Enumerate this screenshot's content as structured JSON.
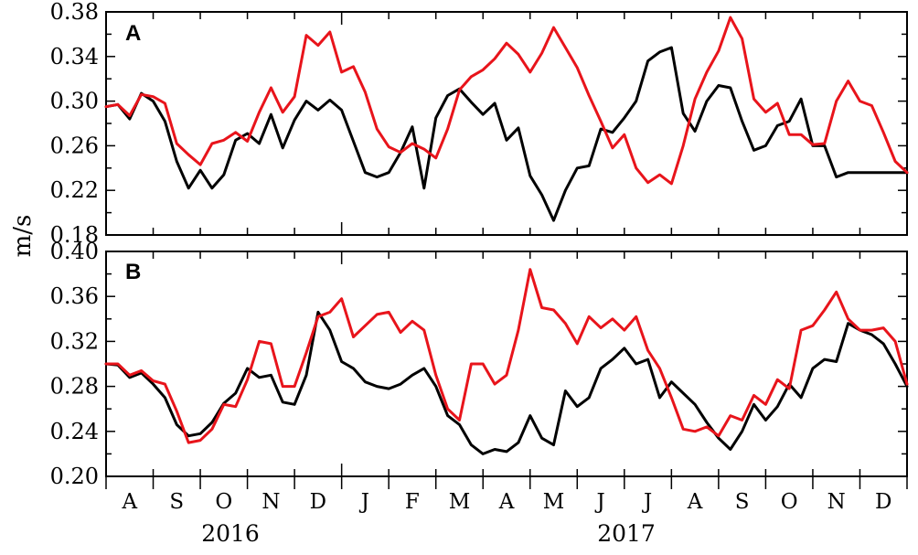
{
  "chart_data": {
    "type": "line",
    "ylabel": "m/s",
    "x_unit": "month",
    "x_range": [
      "2016-08-01",
      "2017-12-31"
    ],
    "months": [
      "A",
      "S",
      "O",
      "N",
      "D",
      "J",
      "F",
      "M",
      "A",
      "M",
      "J",
      "J",
      "A",
      "S",
      "O",
      "N",
      "D"
    ],
    "years": [
      "2016",
      "2017"
    ],
    "colors": {
      "black_series": "#000000",
      "red_series": "#e8141b"
    },
    "panels": [
      {
        "label": "A",
        "ylim": [
          0.18,
          0.38
        ],
        "yticks": [
          "0.18",
          "0.22",
          "0.26",
          "0.30",
          "0.34",
          "0.38"
        ],
        "series": [
          {
            "color": "#000000",
            "x": [
              0,
              0.25,
              0.5,
              0.75,
              1,
              1.25,
              1.5,
              1.75,
              2,
              2.25,
              2.5,
              2.75,
              3,
              3.25,
              3.5,
              3.75,
              4,
              4.25,
              4.5,
              4.75,
              5,
              5.25,
              5.5,
              5.75,
              6,
              6.25,
              6.5,
              6.75,
              7,
              7.25,
              7.5,
              7.75,
              8,
              8.25,
              8.5,
              8.75,
              9,
              9.25,
              9.5,
              9.75,
              10,
              10.25,
              10.5,
              10.75,
              11,
              11.25,
              11.5,
              11.75,
              12,
              12.25,
              12.5,
              12.75,
              13,
              13.25,
              13.5,
              13.75,
              14,
              14.25,
              14.5,
              14.75,
              15,
              15.25,
              15.5,
              15.75,
              16,
              16.25,
              16.5,
              16.75,
              17
            ],
            "y": [
              0.295,
              0.297,
              0.284,
              0.307,
              0.3,
              0.282,
              0.246,
              0.222,
              0.238,
              0.222,
              0.234,
              0.265,
              0.271,
              0.262,
              0.288,
              0.258,
              0.283,
              0.3,
              0.292,
              0.301,
              0.292,
              0.264,
              0.236,
              0.232,
              0.236,
              0.254,
              0.277,
              0.222,
              0.285,
              0.305,
              0.311,
              0.299,
              0.288,
              0.298,
              0.265,
              0.276,
              0.233,
              0.216,
              0.193,
              0.22,
              0.24,
              0.242,
              0.275,
              0.272,
              0.285,
              0.3,
              0.336,
              0.344,
              0.348,
              0.289,
              0.273,
              0.3,
              0.314,
              0.312,
              0.282,
              0.256,
              0.26,
              0.278,
              0.282,
              0.302,
              0.26,
              0.26,
              0.232,
              0.236,
              0.236,
              0.236,
              0.236,
              0.236,
              0.236
            ],
            "note_len": 61
          },
          {
            "color": "#e8141b",
            "x": [
              0,
              0.25,
              0.5,
              0.75,
              1,
              1.25,
              1.5,
              1.75,
              2,
              2.25,
              2.5,
              2.75,
              3,
              3.25,
              3.5,
              3.75,
              4,
              4.25,
              4.5,
              4.75,
              5,
              5.25,
              5.5,
              5.75,
              6,
              6.25,
              6.5,
              6.75,
              7,
              7.25,
              7.5,
              7.75,
              8,
              8.25,
              8.5,
              8.75,
              9,
              9.25,
              9.5,
              9.75,
              10,
              10.25,
              10.5,
              10.75,
              11,
              11.25,
              11.5,
              11.75,
              12,
              12.25,
              12.5,
              12.75,
              13,
              13.25,
              13.5,
              13.75,
              14,
              14.25,
              14.5,
              14.75,
              15,
              15.25,
              15.5,
              15.75,
              16,
              16.25,
              16.5,
              16.75,
              17
            ],
            "y": [
              0.295,
              0.297,
              0.287,
              0.306,
              0.304,
              0.298,
              0.262,
              0.252,
              0.243,
              0.262,
              0.265,
              0.272,
              0.264,
              0.29,
              0.312,
              0.29,
              0.304,
              0.359,
              0.35,
              0.362,
              0.326,
              0.331,
              0.308,
              0.275,
              0.259,
              0.254,
              0.262,
              0.257,
              0.249,
              0.275,
              0.31,
              0.322,
              0.328,
              0.338,
              0.352,
              0.342,
              0.326,
              0.343,
              0.366,
              0.348,
              0.33,
              0.305,
              0.282,
              0.258,
              0.27,
              0.24,
              0.227,
              0.234,
              0.226,
              0.26,
              0.302,
              0.326,
              0.345,
              0.375,
              0.356,
              0.302,
              0.29,
              0.298,
              0.27,
              0.27,
              0.261,
              0.262,
              0.3,
              0.318,
              0.3,
              0.296,
              0.272,
              0.246,
              0.236
            ]
          }
        ]
      },
      {
        "label": "B",
        "ylim": [
          0.2,
          0.4
        ],
        "yticks": [
          "0.20",
          "0.24",
          "0.28",
          "0.32",
          "0.36",
          "0.40"
        ],
        "series": [
          {
            "color": "#000000",
            "x": [
              0,
              0.25,
              0.5,
              0.75,
              1,
              1.25,
              1.5,
              1.75,
              2,
              2.25,
              2.5,
              2.75,
              3,
              3.25,
              3.5,
              3.75,
              4,
              4.25,
              4.5,
              4.75,
              5,
              5.25,
              5.5,
              5.75,
              6,
              6.25,
              6.5,
              6.75,
              7,
              7.25,
              7.5,
              7.75,
              8,
              8.25,
              8.5,
              8.75,
              9,
              9.25,
              9.5,
              9.75,
              10,
              10.25,
              10.5,
              10.75,
              11,
              11.25,
              11.5,
              11.75,
              12,
              12.25,
              12.5,
              12.75,
              13,
              13.25,
              13.5,
              13.75,
              14,
              14.25,
              14.5,
              14.75,
              15,
              15.25,
              15.5,
              15.75,
              16,
              16.25,
              16.5,
              16.75,
              17
            ],
            "y": [
              0.3,
              0.299,
              0.288,
              0.292,
              0.282,
              0.27,
              0.246,
              0.236,
              0.238,
              0.248,
              0.265,
              0.274,
              0.296,
              0.288,
              0.29,
              0.266,
              0.264,
              0.29,
              0.346,
              0.33,
              0.302,
              0.296,
              0.284,
              0.28,
              0.278,
              0.282,
              0.29,
              0.296,
              0.28,
              0.254,
              0.246,
              0.228,
              0.22,
              0.224,
              0.222,
              0.23,
              0.254,
              0.234,
              0.228,
              0.276,
              0.262,
              0.27,
              0.296,
              0.304,
              0.314,
              0.3,
              0.304,
              0.27,
              0.284,
              0.274,
              0.264,
              0.248,
              0.234,
              0.224,
              0.24,
              0.264,
              0.25,
              0.262,
              0.282,
              0.27,
              0.296,
              0.304,
              0.302,
              0.336,
              0.33,
              0.326,
              0.318,
              0.3,
              0.28
            ],
            "truncate_after": 68
          },
          {
            "color": "#e8141b",
            "x": [
              0,
              0.25,
              0.5,
              0.75,
              1,
              1.25,
              1.5,
              1.75,
              2,
              2.25,
              2.5,
              2.75,
              3,
              3.25,
              3.5,
              3.75,
              4,
              4.25,
              4.5,
              4.75,
              5,
              5.25,
              5.5,
              5.75,
              6,
              6.25,
              6.5,
              6.75,
              7,
              7.25,
              7.5,
              7.75,
              8,
              8.25,
              8.5,
              8.75,
              9,
              9.25,
              9.5,
              9.75,
              10,
              10.25,
              10.5,
              10.75,
              11,
              11.25,
              11.5,
              11.75,
              12,
              12.25,
              12.5,
              12.75,
              13,
              13.25,
              13.5,
              13.75,
              14,
              14.25,
              14.5,
              14.75,
              15,
              15.25,
              15.5,
              15.75,
              16,
              16.25,
              16.5,
              16.75,
              17
            ],
            "y": [
              0.3,
              0.3,
              0.29,
              0.294,
              0.285,
              0.282,
              0.258,
              0.23,
              0.232,
              0.242,
              0.264,
              0.262,
              0.286,
              0.32,
              0.318,
              0.28,
              0.28,
              0.31,
              0.342,
              0.346,
              0.358,
              0.324,
              0.334,
              0.344,
              0.346,
              0.328,
              0.338,
              0.33,
              0.29,
              0.26,
              0.25,
              0.3,
              0.3,
              0.282,
              0.29,
              0.33,
              0.384,
              0.35,
              0.348,
              0.336,
              0.318,
              0.342,
              0.332,
              0.34,
              0.33,
              0.342,
              0.312,
              0.296,
              0.27,
              0.242,
              0.24,
              0.244,
              0.236,
              0.254,
              0.25,
              0.272,
              0.264,
              0.286,
              0.278,
              0.33,
              0.334,
              0.348,
              0.364,
              0.34,
              0.33,
              0.33,
              0.332,
              0.32,
              0.282
            ]
          }
        ]
      }
    ]
  }
}
